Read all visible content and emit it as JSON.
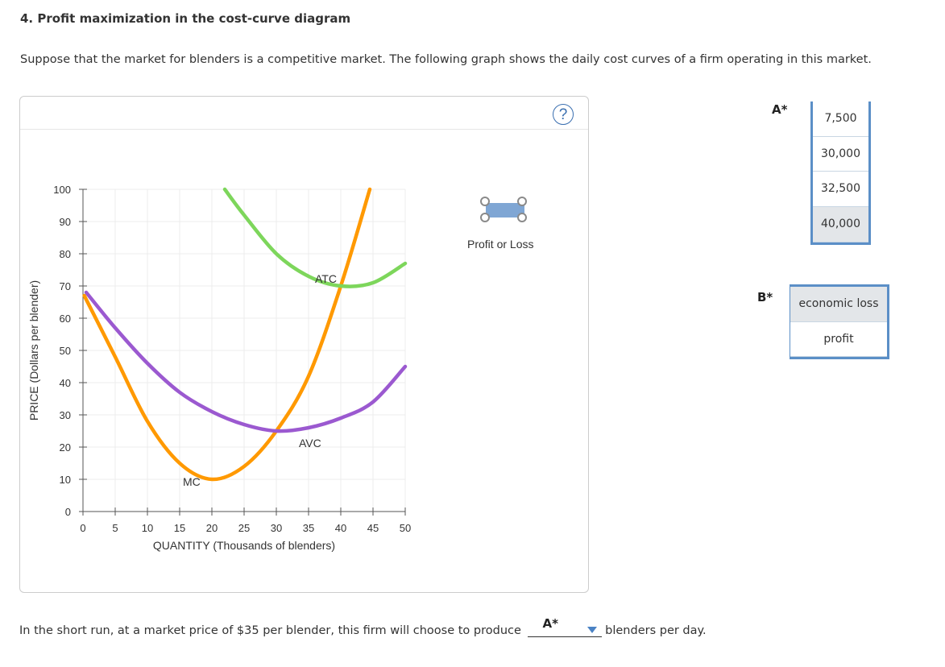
{
  "header": {
    "title": "4. Profit maximization in the cost-curve diagram",
    "intro": "Suppose that the market for blenders is a competitive market. The following graph shows the daily cost curves of a firm operating in this market."
  },
  "panel": {
    "help_symbol": "?",
    "tool_label": "Profit or Loss"
  },
  "chart_data": {
    "type": "line",
    "xlabel": "QUANTITY (Thousands of blenders)",
    "ylabel": "PRICE (Dollars per blender)",
    "xlim": [
      0,
      50
    ],
    "ylim": [
      0,
      100
    ],
    "xticks": [
      0,
      5,
      10,
      15,
      20,
      25,
      30,
      35,
      40,
      45,
      50
    ],
    "yticks": [
      0,
      10,
      20,
      30,
      40,
      50,
      60,
      70,
      80,
      90,
      100
    ],
    "series": [
      {
        "name": "MC",
        "color": "#ff9900",
        "points": [
          [
            0.2,
            67
          ],
          [
            5,
            48
          ],
          [
            10,
            28
          ],
          [
            15,
            15
          ],
          [
            20,
            10
          ],
          [
            25,
            14
          ],
          [
            30,
            25
          ],
          [
            35,
            42
          ],
          [
            40,
            70
          ],
          [
            44.5,
            100
          ]
        ]
      },
      {
        "name": "AVC",
        "color": "#9b59d0",
        "points": [
          [
            0.5,
            68
          ],
          [
            5,
            57
          ],
          [
            10,
            46
          ],
          [
            15,
            37
          ],
          [
            20,
            31
          ],
          [
            25,
            27
          ],
          [
            30,
            25
          ],
          [
            35,
            26
          ],
          [
            40,
            29
          ],
          [
            45,
            34
          ],
          [
            50,
            45
          ]
        ]
      },
      {
        "name": "ATC",
        "color": "#7dd65b",
        "points": [
          [
            22,
            100
          ],
          [
            25,
            92
          ],
          [
            30,
            80
          ],
          [
            35,
            73
          ],
          [
            40,
            70
          ],
          [
            45,
            71
          ],
          [
            50,
            77
          ]
        ]
      }
    ],
    "annotations": [
      {
        "text": "MC",
        "x": 15.5,
        "y": 8
      },
      {
        "text": "AVC",
        "x": 33.5,
        "y": 20
      },
      {
        "text": "ATC",
        "x": 36,
        "y": 71
      }
    ]
  },
  "dropdown_a": {
    "marker": "A*",
    "options": [
      "7,500",
      "30,000",
      "32,500",
      "40,000"
    ],
    "highlighted": "40,000"
  },
  "dropdown_b": {
    "marker": "B*",
    "options": [
      "economic loss",
      "profit"
    ],
    "highlighted": "economic loss"
  },
  "question": {
    "prefix": "In the short run, at a market price of $35 per blender, this firm will choose to produce",
    "blank_marker": "A*",
    "suffix": "blenders per day."
  }
}
